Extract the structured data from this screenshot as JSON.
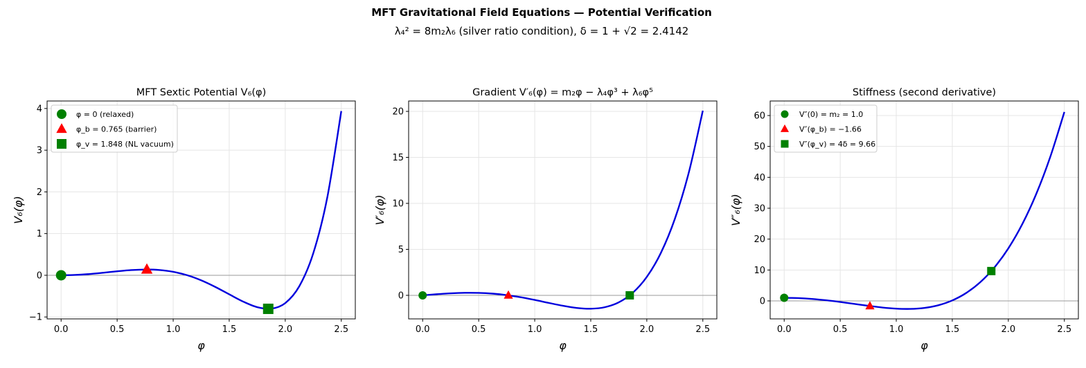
{
  "suptitle": "MFT Gravitational Field Equations — Potential Verification",
  "subtitle": "λ₄² = 8m₂λ₆ (silver ratio condition), δ = 1 + √2 = 2.4142",
  "colors": {
    "curve": "#0000dd",
    "relaxed": "#008000",
    "barrier": "#ff0000",
    "vacuum": "#008000",
    "zero_line": "#999999",
    "grid": "#e5e5e5"
  },
  "chart_data": [
    {
      "type": "line",
      "title": "MFT Sextic Potential V₆(φ)",
      "xlabel": "φ",
      "ylabel": "V₆(φ)",
      "xlim": [
        -0.125,
        2.625
      ],
      "ylim": [
        -1.046,
        4.18
      ],
      "xticks": [
        "0.0",
        "0.5",
        "1.0",
        "1.5",
        "2.0",
        "2.5"
      ],
      "yticks": [
        "−1",
        "0",
        "1",
        "2",
        "3",
        "4"
      ],
      "ytick_values": [
        -1,
        0,
        1,
        2,
        3,
        4
      ],
      "grid": true,
      "legend": "top-left",
      "x": [
        0,
        0.125,
        0.25,
        0.375,
        0.5,
        0.625,
        0.75,
        0.875,
        1.0,
        1.125,
        1.25,
        1.375,
        1.5,
        1.625,
        1.75,
        1.875,
        2.0,
        2.125,
        2.25,
        2.375,
        2.5
      ],
      "y": [
        0,
        0.00769,
        0.02932,
        0.06066,
        0.09505,
        0.12399,
        0.13788,
        0.12712,
        0.08333,
        0.00085,
        -0.12156,
        -0.27875,
        -0.45703,
        -0.63174,
        -0.76463,
        -0.80102,
        -0.66667,
        -0.2645,
        0.52899,
        1.86747,
        3.9388
      ],
      "markers": [
        {
          "label": "φ = 0 (relaxed)",
          "shape": "circle",
          "x": 0,
          "y": 0
        },
        {
          "label": "φ_b = 0.765 (barrier)",
          "shape": "triangle",
          "x": 0.765,
          "y": 0.1381
        },
        {
          "label": "φ_v = 1.848 (NL vacuum)",
          "shape": "square",
          "x": 1.848,
          "y": -0.8047
        }
      ]
    },
    {
      "type": "line",
      "title": "Gradient V′₆(φ) = m₂φ − λ₄φ³ + λ₆φ⁵",
      "xlabel": "φ",
      "ylabel": "V′₆(φ)",
      "xlim": [
        -0.125,
        2.625
      ],
      "ylim": [
        -2.56,
        21.13
      ],
      "xticks": [
        "0.0",
        "0.5",
        "1.0",
        "1.5",
        "2.0",
        "2.5"
      ],
      "yticks": [
        "0",
        "5",
        "10",
        "15",
        "20"
      ],
      "ytick_values": [
        0,
        5,
        10,
        15,
        20
      ],
      "grid": true,
      "x": [
        0,
        0.125,
        0.25,
        0.375,
        0.5,
        0.625,
        0.75,
        0.875,
        1.0,
        1.125,
        1.25,
        1.375,
        1.5,
        1.625,
        1.75,
        1.875,
        2.0,
        2.125,
        2.25,
        2.375,
        2.5
      ],
      "y": [
        0,
        0.12111,
        0.21924,
        0.27324,
        0.26563,
        0.1844,
        0.0249,
        -0.20839,
        -0.5,
        -0.82164,
        -1.13037,
        -1.36678,
        -1.45313,
        -1.29155,
        -0.76221,
        0.27855,
        2,
        4.59889,
        8.30127,
        13.3643,
        20.07813
      ],
      "markers": [
        {
          "shape": "circle",
          "x": 0,
          "y": 0
        },
        {
          "shape": "triangle",
          "x": 0.765,
          "y": 0
        },
        {
          "shape": "square",
          "x": 1.848,
          "y": 0
        }
      ]
    },
    {
      "type": "line",
      "title": "Stiffness (second derivative)",
      "xlabel": "φ",
      "ylabel": "V″₆(φ)",
      "xlim": [
        -0.125,
        2.625
      ],
      "ylim": [
        -5.82,
        64.7
      ],
      "xticks": [
        "0.0",
        "0.5",
        "1.0",
        "1.5",
        "2.0",
        "2.5"
      ],
      "yticks": [
        "0",
        "10",
        "20",
        "30",
        "40",
        "50",
        "60"
      ],
      "ytick_values": [
        0,
        10,
        20,
        30,
        40,
        50,
        60
      ],
      "grid": true,
      "legend": "top-left",
      "x": [
        0,
        0.125,
        0.25,
        0.375,
        0.5,
        0.625,
        0.75,
        0.875,
        1.0,
        1.125,
        1.25,
        1.375,
        1.5,
        1.625,
        1.75,
        1.875,
        2.0,
        2.125,
        2.25,
        2.375,
        2.5
      ],
      "y": [
        1,
        0.90686,
        0.63477,
        0.20569,
        -0.34375,
        -0.96228,
        -1.58398,
        -2.1283,
        -2.5,
        -2.58923,
        -2.27148,
        -1.40759,
        0.15625,
        2.5885,
        6.07227,
        10.8053,
        17,
        24.8834,
        34.6973,
        46.6979,
        61.15625
      ],
      "markers": [
        {
          "label": "V″(0) = m₂ = 1.0",
          "shape": "circle",
          "x": 0,
          "y": 1.0
        },
        {
          "label": "V″(φ_b) = −1.66",
          "shape": "triangle",
          "x": 0.765,
          "y": -1.66
        },
        {
          "label": "V″(φ_v) = 4δ = 9.66",
          "shape": "square",
          "x": 1.848,
          "y": 9.66
        }
      ]
    }
  ]
}
